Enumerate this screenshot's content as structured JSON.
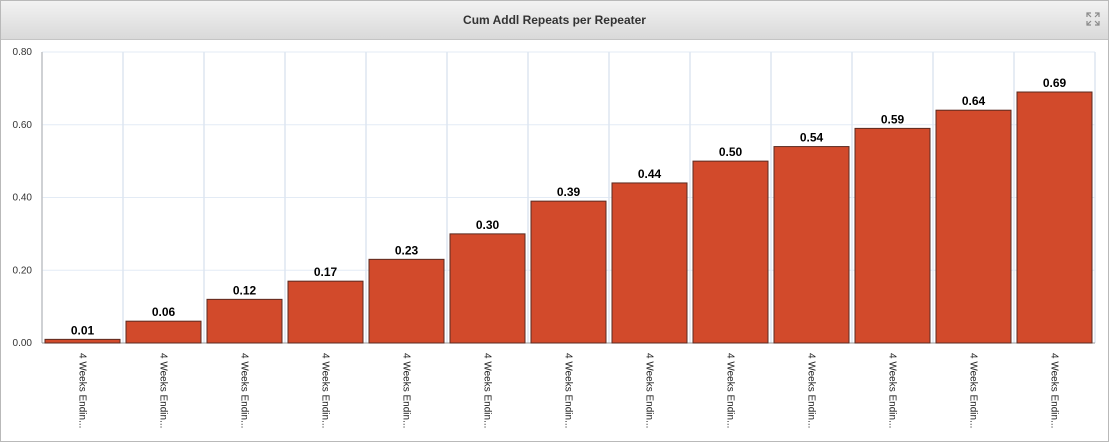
{
  "panel": {
    "title": "Cum Addl Repeats per Repeater",
    "expand_icon": "expand-arrows-icon"
  },
  "chart_data": {
    "type": "bar",
    "title": "Cum Addl Repeats per Repeater",
    "xlabel": "",
    "ylabel": "",
    "ylim": [
      0,
      0.8
    ],
    "yticks": [
      "0.00",
      "0.20",
      "0.40",
      "0.60",
      "0.80"
    ],
    "grid": true,
    "legend": "none",
    "bar_color": "#d24a2b",
    "categories": [
      "4 Weeks Endin...",
      "4 Weeks Endin...",
      "4 Weeks Endin...",
      "4 Weeks Endin...",
      "4 Weeks Endin...",
      "4 Weeks Endin...",
      "4 Weeks Endin...",
      "4 Weeks Endin...",
      "4 Weeks Endin...",
      "4 Weeks Endin...",
      "4 Weeks Endin...",
      "4 Weeks Endin...",
      "4 Weeks Endin..."
    ],
    "values": [
      0.01,
      0.06,
      0.12,
      0.17,
      0.23,
      0.3,
      0.39,
      0.44,
      0.5,
      0.54,
      0.59,
      0.64,
      0.69
    ],
    "value_labels": [
      "0.01",
      "0.06",
      "0.12",
      "0.17",
      "0.23",
      "0.30",
      "0.39",
      "0.44",
      "0.50",
      "0.54",
      "0.59",
      "0.64",
      "0.69"
    ]
  }
}
